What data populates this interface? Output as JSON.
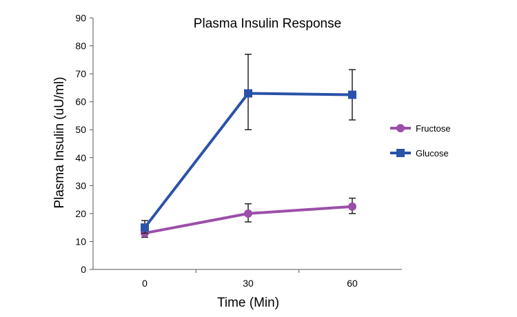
{
  "chart_data": {
    "type": "line",
    "title": "Plasma Insulin Response",
    "xlabel": "Time (Min)",
    "ylabel": "Plasma Insulin (uU/ml)",
    "categories": [
      "0",
      "30",
      "60"
    ],
    "ylim": [
      0,
      90
    ],
    "yticks": [
      "0",
      "10",
      "20",
      "30",
      "40",
      "50",
      "60",
      "70",
      "80",
      "90"
    ],
    "grid": false,
    "legend_position": "right",
    "series": [
      {
        "name": "Fructose",
        "values": [
          13,
          20,
          22.5
        ],
        "error_low": [
          11.5,
          17,
          20
        ],
        "error_high": [
          14.5,
          23.5,
          25.5
        ],
        "color": "#9b4fa8",
        "marker": "circle"
      },
      {
        "name": "Glucose",
        "values": [
          15,
          63,
          62.5
        ],
        "error_low": [
          13,
          50,
          53.5
        ],
        "error_high": [
          17.5,
          77,
          71.5
        ],
        "color": "#2a52a8",
        "marker": "square"
      }
    ]
  }
}
